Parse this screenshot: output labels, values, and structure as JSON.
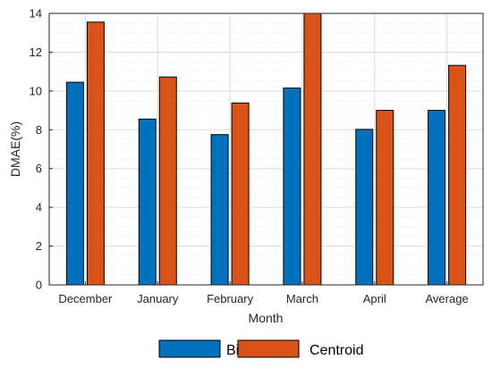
{
  "chart_data": {
    "type": "bar",
    "categories": [
      "December",
      "January",
      "February",
      "March",
      "April",
      "Average"
    ],
    "series": [
      {
        "name": "Bisector",
        "values": [
          10.45,
          8.55,
          7.75,
          10.15,
          8.02,
          9.0
        ]
      },
      {
        "name": "Centroid",
        "values": [
          13.55,
          10.72,
          9.38,
          14.0,
          9.0,
          11.32
        ]
      }
    ],
    "xlabel": "Month",
    "ylabel": "DMAE(%)",
    "ylim": [
      0,
      14
    ],
    "yticks": [
      "0",
      "2",
      "4",
      "6",
      "8",
      "10",
      "12",
      "14"
    ],
    "grid": "major and minor",
    "legend_position": "bottom",
    "colors": {
      "Bisector": "#0072BD",
      "Centroid": "#D95319"
    }
  }
}
